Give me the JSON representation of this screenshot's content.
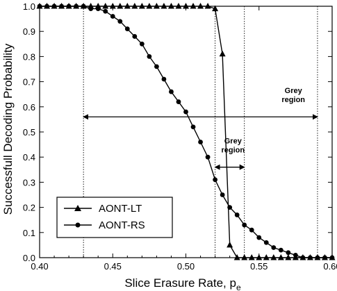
{
  "chart_data": {
    "type": "line",
    "title": "",
    "xlabel": "Slice Erasure Rate, p",
    "xlabel_subscript": "e",
    "ylabel": "Successfull Decoding Probability",
    "xlim": [
      0.4,
      0.6
    ],
    "ylim": [
      0.0,
      1.0
    ],
    "xticks": [
      "0.40",
      "0.45",
      "0.50",
      "0.55",
      "0.60"
    ],
    "yticks": [
      "0.0",
      "0.1",
      "0.2",
      "0.3",
      "0.4",
      "0.5",
      "0.6",
      "0.7",
      "0.8",
      "0.9",
      "1.0"
    ],
    "grid": false,
    "legend_position": "bottom-left",
    "series": [
      {
        "name": "AONT-LT",
        "marker": "triangle",
        "color": "#000000",
        "x": [
          0.4,
          0.405,
          0.41,
          0.415,
          0.42,
          0.425,
          0.43,
          0.435,
          0.44,
          0.445,
          0.45,
          0.455,
          0.46,
          0.465,
          0.47,
          0.475,
          0.48,
          0.485,
          0.49,
          0.495,
          0.5,
          0.505,
          0.51,
          0.515,
          0.52,
          0.525,
          0.53,
          0.535,
          0.54,
          0.545,
          0.55,
          0.555,
          0.56,
          0.565,
          0.57,
          0.575,
          0.58,
          0.585,
          0.59,
          0.595,
          0.6
        ],
        "y": [
          1.0,
          1.0,
          1.0,
          1.0,
          1.0,
          1.0,
          1.0,
          1.0,
          1.0,
          1.0,
          1.0,
          1.0,
          1.0,
          1.0,
          1.0,
          1.0,
          1.0,
          1.0,
          1.0,
          1.0,
          1.0,
          1.0,
          1.0,
          1.0,
          0.99,
          0.81,
          0.05,
          0.0,
          0.0,
          0.0,
          0.0,
          0.0,
          0.0,
          0.0,
          0.0,
          0.0,
          0.0,
          0.0,
          0.0,
          0.0,
          0.0
        ]
      },
      {
        "name": "AONT-RS",
        "marker": "circle",
        "color": "#000000",
        "x": [
          0.4,
          0.405,
          0.41,
          0.415,
          0.42,
          0.425,
          0.43,
          0.435,
          0.44,
          0.445,
          0.45,
          0.455,
          0.46,
          0.465,
          0.47,
          0.475,
          0.48,
          0.485,
          0.49,
          0.495,
          0.5,
          0.505,
          0.51,
          0.515,
          0.52,
          0.525,
          0.53,
          0.535,
          0.54,
          0.545,
          0.55,
          0.555,
          0.56,
          0.565,
          0.57,
          0.575,
          0.58,
          0.585,
          0.59,
          0.595,
          0.6
        ],
        "y": [
          1.0,
          1.0,
          1.0,
          1.0,
          1.0,
          1.0,
          1.0,
          0.99,
          0.99,
          0.98,
          0.96,
          0.94,
          0.91,
          0.88,
          0.85,
          0.8,
          0.76,
          0.71,
          0.66,
          0.62,
          0.58,
          0.52,
          0.46,
          0.4,
          0.31,
          0.25,
          0.2,
          0.17,
          0.13,
          0.11,
          0.08,
          0.06,
          0.04,
          0.03,
          0.02,
          0.01,
          0.0,
          0.0,
          0.0,
          0.0,
          0.0
        ]
      }
    ],
    "annotations": [
      {
        "lines": [
          "Grey",
          "region"
        ],
        "x_range": [
          0.43,
          0.59
        ]
      },
      {
        "lines": [
          "Grey",
          "region"
        ],
        "x_range": [
          0.52,
          0.54
        ]
      }
    ]
  }
}
